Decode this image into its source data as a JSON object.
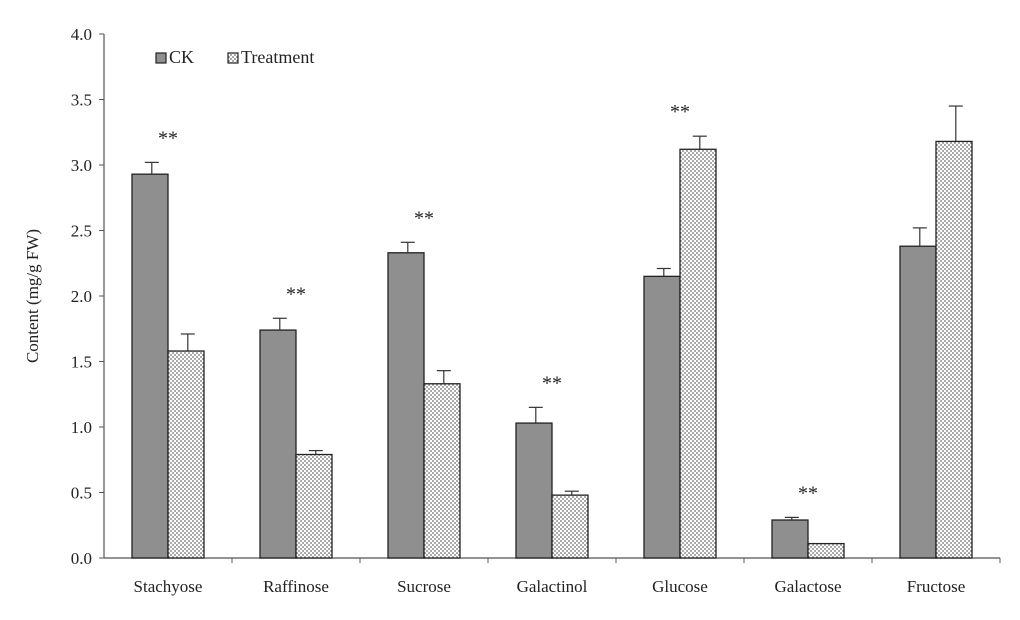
{
  "chart_data": {
    "type": "bar",
    "title": "",
    "xlabel": "",
    "ylabel": "Content  (mg/g FW)",
    "ylim": [
      0,
      4.0
    ],
    "yticks": [
      "0.0",
      "0.5",
      "1.0",
      "1.5",
      "2.0",
      "2.5",
      "3.0",
      "3.5",
      "4.0"
    ],
    "ytick_values": [
      0,
      0.5,
      1.0,
      1.5,
      2.0,
      2.5,
      3.0,
      3.5,
      4.0
    ],
    "grid": false,
    "legend_position": "top-left",
    "categories": [
      "Stachyose",
      "Raffinose",
      "Sucrose",
      "Galactinol",
      "Glucose",
      "Galactose",
      "Fructose"
    ],
    "series": [
      {
        "name": "CK",
        "color": "#8f8f8f",
        "pattern": "solid",
        "values": [
          2.93,
          1.74,
          2.33,
          1.03,
          2.15,
          0.29,
          2.38
        ],
        "errors": [
          0.09,
          0.09,
          0.08,
          0.12,
          0.06,
          0.02,
          0.14
        ]
      },
      {
        "name": "Treatment",
        "color": "#ffffff",
        "pattern": "dotted",
        "values": [
          1.58,
          0.79,
          1.33,
          0.48,
          3.12,
          0.11,
          3.18
        ],
        "errors": [
          0.13,
          0.03,
          0.1,
          0.03,
          0.1,
          0.0,
          0.27
        ]
      }
    ],
    "significance": [
      "**",
      "**",
      "**",
      "**",
      "**",
      "**",
      ""
    ]
  }
}
